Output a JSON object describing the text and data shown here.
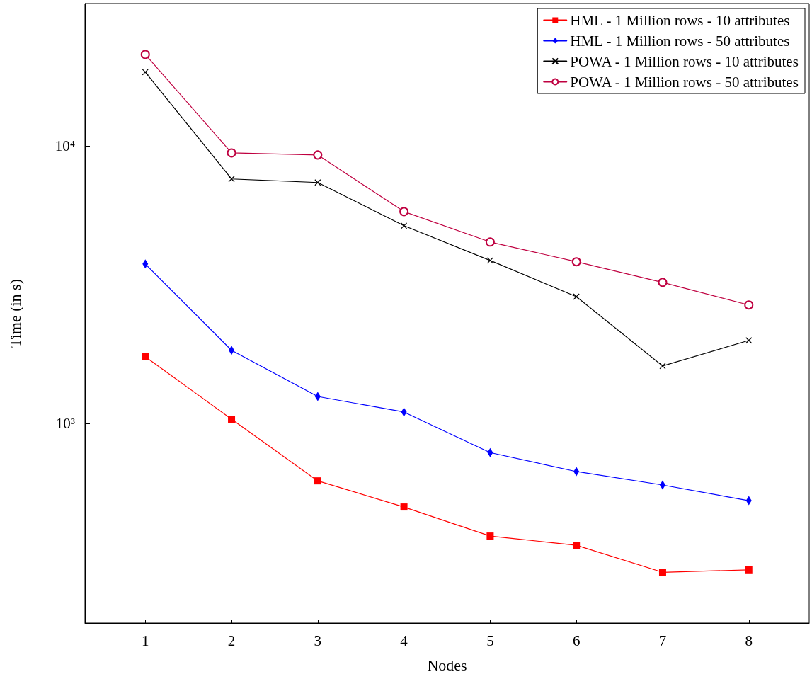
{
  "chart_data": {
    "type": "line",
    "xlabel": "Nodes",
    "ylabel": "Time (in s)",
    "log": "y",
    "x": [
      1,
      2,
      3,
      4,
      5,
      6,
      7,
      8
    ],
    "xlim": [
      0.3,
      8.7
    ],
    "xticks": [
      1,
      2,
      3,
      4,
      5,
      6,
      7,
      8
    ],
    "ylim": [
      191,
      32500
    ],
    "yticks": [
      {
        "value": 1000,
        "label": "10³"
      },
      {
        "value": 10000,
        "label": "10⁴"
      }
    ],
    "grid": false,
    "legend": "top right",
    "line_style": "solid",
    "series": [
      {
        "name": "HML - 1 Million rows - 10 attributes",
        "color": "#ff0000",
        "marker": "square",
        "values": [
          1738,
          1036,
          621,
          500,
          393,
          364,
          291,
          297
        ]
      },
      {
        "name": "HML - 1 Million rows - 50 attributes",
        "color": "#0000ff",
        "marker": "diamond",
        "values": [
          3750,
          1833,
          1250,
          1099,
          785,
          671,
          600,
          527
        ]
      },
      {
        "name": "POWA - 1 Million rows - 10 attributes",
        "color": "#000000",
        "marker": "cross",
        "values": [
          18400,
          7590,
          7370,
          5150,
          3860,
          2860,
          1610,
          1990
        ]
      },
      {
        "name": "POWA - 1 Million rows - 50 attributes",
        "color": "#bf0040",
        "marker": "circle",
        "values": [
          21300,
          9420,
          9260,
          5790,
          4500,
          3820,
          3220,
          2670
        ]
      }
    ]
  }
}
